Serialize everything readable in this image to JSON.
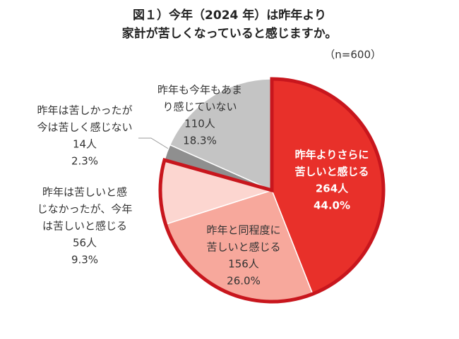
{
  "chart_data": {
    "type": "pie",
    "title": [
      "図１）今年（2024 年）は昨年より",
      "家計が苦しくなっていると感じますか。"
    ],
    "subtitle": "（n=600）",
    "categories": [
      [
        "昨年よりさらに",
        "苦しいと感じる"
      ],
      [
        "昨年と同程度に",
        "苦しいと感じる"
      ],
      [
        "昨年は苦しいと感",
        "じなかったが、今年",
        "は苦しいと感じる"
      ],
      [
        "昨年は苦しかったが",
        "今は苦しく感じない"
      ],
      [
        "昨年も今年もあま",
        "り感じていない"
      ]
    ],
    "counts": [
      264,
      156,
      56,
      14,
      110
    ],
    "count_labels": [
      "264人",
      "156人",
      "56人",
      "14人",
      "110人"
    ],
    "values": [
      44.0,
      26.0,
      9.3,
      2.3,
      18.3
    ],
    "value_labels": [
      "44.0%",
      "26.0%",
      "9.3%",
      "2.3%",
      "18.3%"
    ],
    "colors": [
      "#e8302a",
      "#f7a89c",
      "#fcd6d0",
      "#8f8f8f",
      "#c4c4c4"
    ],
    "highlight_color": "#c8161d"
  }
}
